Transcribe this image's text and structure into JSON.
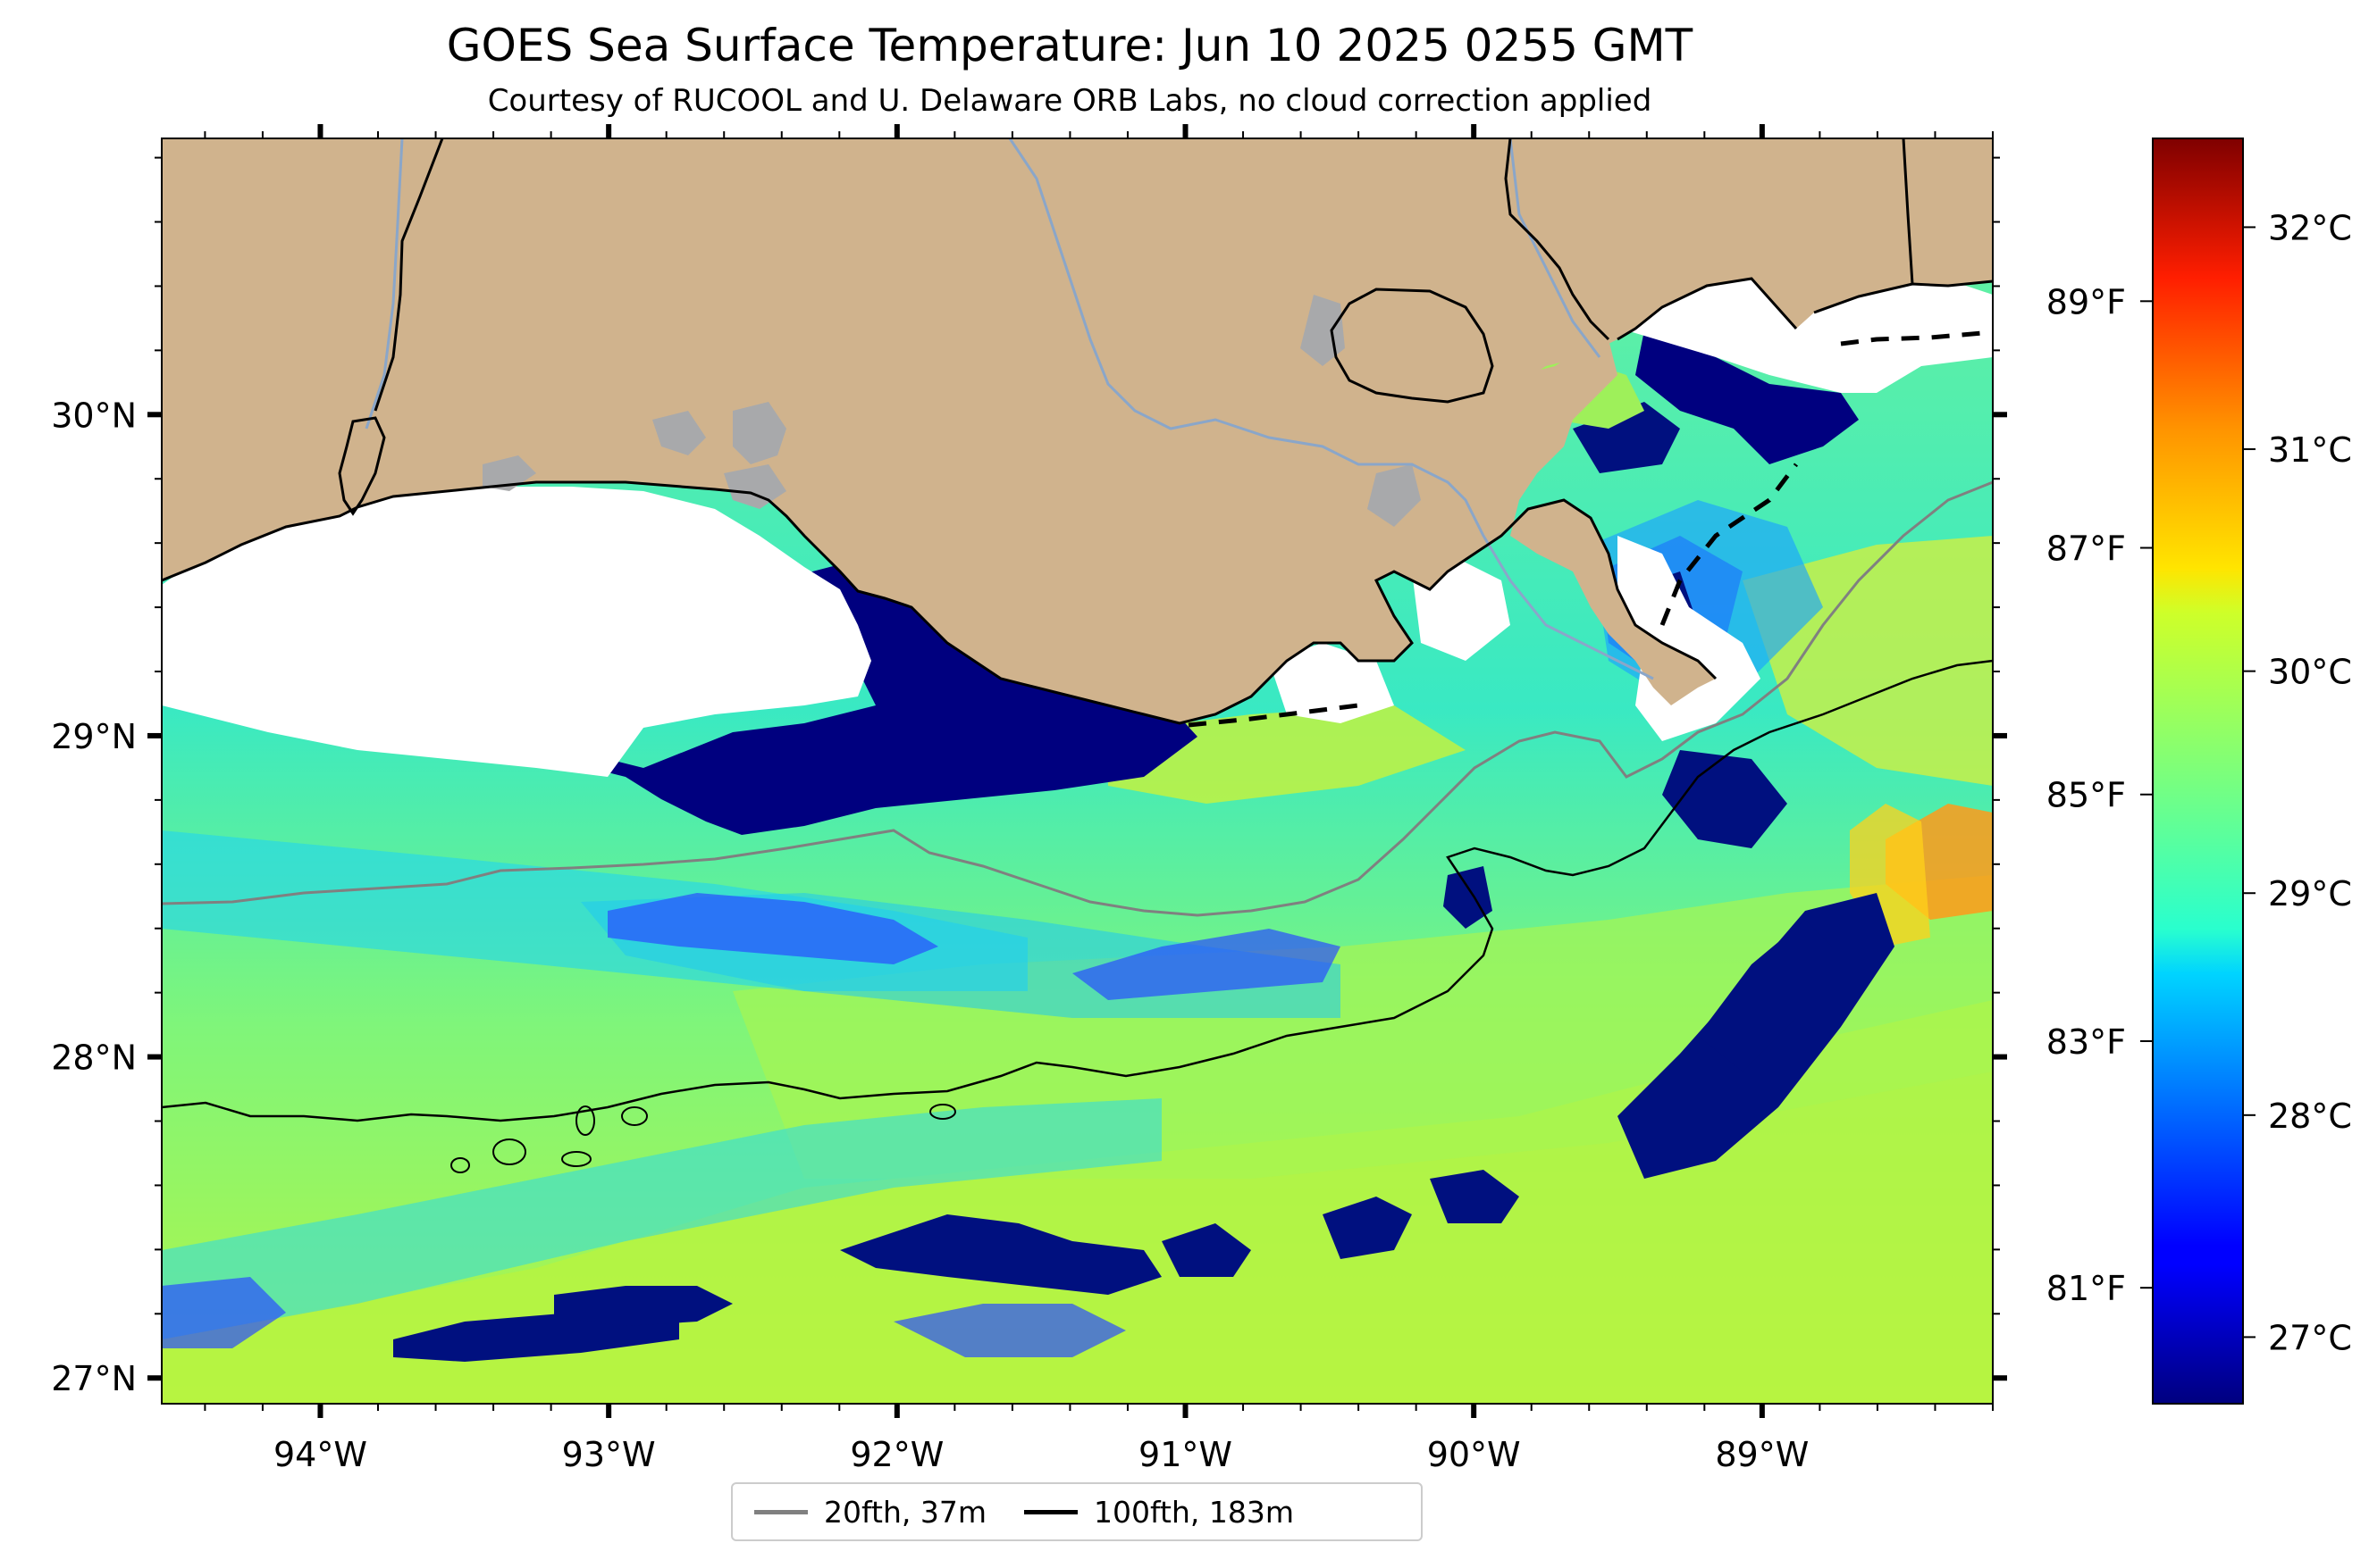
{
  "title": "GOES Sea Surface Temperature: Jun 10 2025 0255 GMT",
  "subtitle": "Courtesy of RUCOOL and U. Delaware ORB Labs, no cloud correction applied",
  "map": {
    "lon_labels": [
      "94°W",
      "93°W",
      "92°W",
      "91°W",
      "90°W",
      "89°W"
    ],
    "lat_labels": [
      "30°N",
      "29°N",
      "28°N",
      "27°N"
    ],
    "lon_range": [
      -94.55,
      -88.2
    ],
    "lat_range": [
      26.92,
      30.86
    ],
    "colors": {
      "land": "#d0b38d",
      "cloud_mask": "#ffffff",
      "lakes": "#a8a9ab",
      "rivers": "#8aa6c9"
    }
  },
  "colorbar": {
    "celsius_labels": [
      "32°C",
      "31°C",
      "30°C",
      "29°C",
      "28°C",
      "27°C"
    ],
    "fahrenheit_labels": [
      "89°F",
      "87°F",
      "85°F",
      "83°F",
      "81°F"
    ],
    "range_c": [
      26.7,
      32.4
    ],
    "colormap": "jet"
  },
  "legend": {
    "items": [
      {
        "label": "20fth, 37m",
        "color": "#808080"
      },
      {
        "label": "100fth, 183m",
        "color": "#000000"
      }
    ]
  }
}
